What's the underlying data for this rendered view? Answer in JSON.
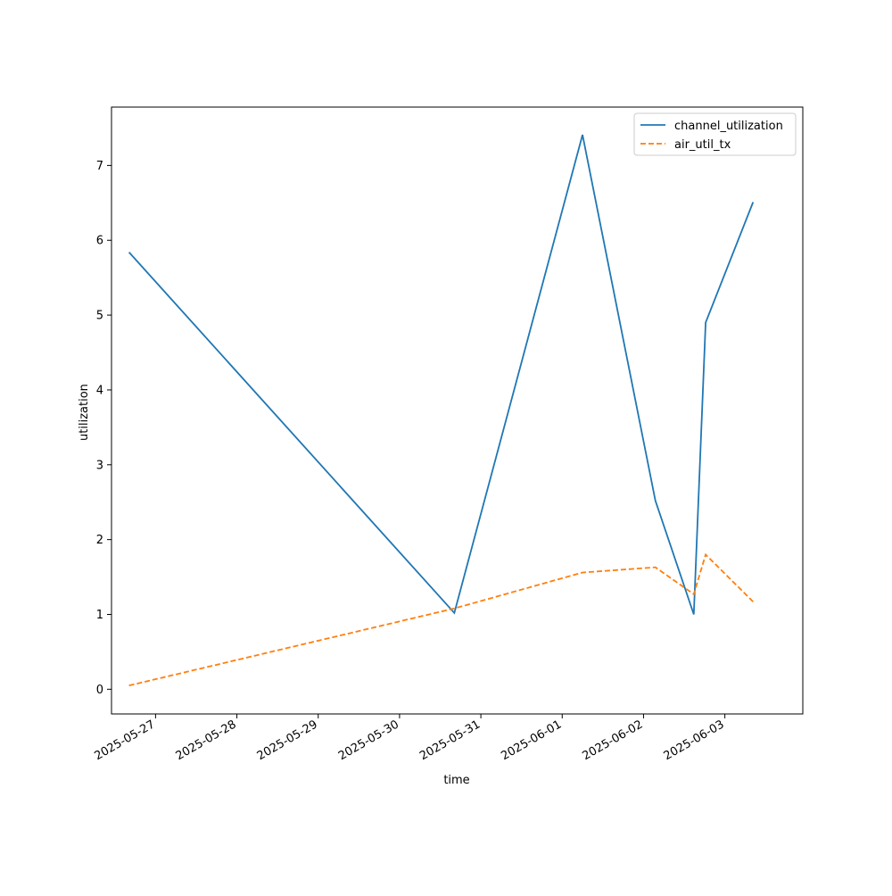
{
  "chart_data": {
    "type": "line",
    "title": "",
    "xlabel": "time",
    "ylabel": "utilization",
    "x_type": "date",
    "xlim": [
      "2025-05-26T11:00",
      "2025-06-03T23:00"
    ],
    "ylim": [
      -0.33,
      7.78
    ],
    "x_ticks": [
      "2025-05-27",
      "2025-05-28",
      "2025-05-29",
      "2025-05-30",
      "2025-05-31",
      "2025-06-01",
      "2025-06-02",
      "2025-06-03"
    ],
    "y_ticks": [
      0,
      1,
      2,
      3,
      4,
      5,
      6,
      7
    ],
    "y_tick_labels": [
      "0",
      "1",
      "2",
      "3",
      "4",
      "5",
      "6",
      "7"
    ],
    "grid": false,
    "legend_position": "top-right",
    "series": [
      {
        "name": "channel_utilization",
        "color": "#1f77b4",
        "style": "solid",
        "x": [
          "2025-05-26T16:10",
          "2025-05-30T16:10",
          "2025-06-01T06:00",
          "2025-06-02T03:30",
          "2025-06-02T14:50",
          "2025-06-02T18:20",
          "2025-06-03T08:20"
        ],
        "y": [
          5.84,
          1.02,
          7.41,
          2.52,
          1.0,
          4.9,
          6.51
        ]
      },
      {
        "name": "air_util_tx",
        "color": "#ff7f0e",
        "style": "dashed",
        "x": [
          "2025-05-26T16:10",
          "2025-05-30T16:10",
          "2025-06-01T06:00",
          "2025-06-02T03:30",
          "2025-06-02T14:50",
          "2025-06-02T18:20",
          "2025-06-03T08:20"
        ],
        "y": [
          0.05,
          1.08,
          1.56,
          1.63,
          1.27,
          1.8,
          1.17
        ]
      }
    ]
  }
}
